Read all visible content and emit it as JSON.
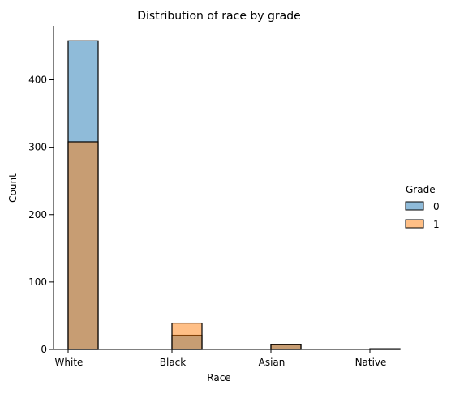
{
  "chart_data": {
    "type": "bar",
    "title": "Distribution of race by grade",
    "xlabel": "Race",
    "ylabel": "Count",
    "categories": [
      "White",
      "Black",
      "Asian",
      "Native"
    ],
    "series": [
      {
        "name": "0",
        "values": [
          458,
          21,
          7,
          1
        ],
        "color": "#1f77b4",
        "opacity": 0.5
      },
      {
        "name": "1",
        "values": [
          308,
          39,
          7,
          1
        ],
        "color": "#ff7f0e",
        "opacity": 0.5
      }
    ],
    "ylim": [
      0,
      480
    ],
    "yticks": [
      0,
      100,
      200,
      300,
      400
    ],
    "grid": false,
    "legend": {
      "title": "Grade",
      "placement": "right"
    }
  }
}
